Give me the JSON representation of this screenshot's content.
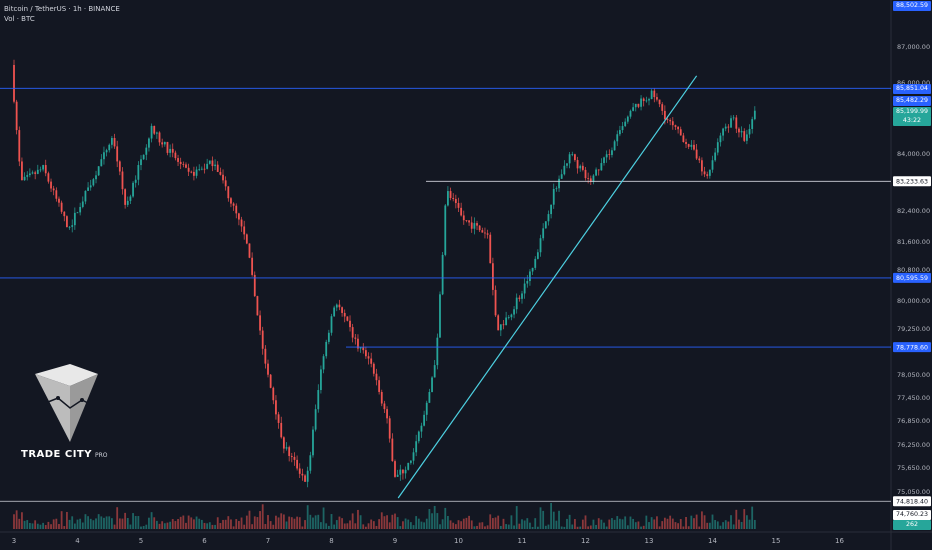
{
  "header": {
    "title": "Bitcoin / TetherUS · 1h · BINANCE",
    "volume_label": "Vol · BTC"
  },
  "logo": {
    "name": "TRADE CITY",
    "suffix": "PRO"
  },
  "colors": {
    "background": "#131722",
    "up": "#26a69a",
    "down": "#ef5350",
    "level_white": "#d1d4dc",
    "level_blue": "#2962ff",
    "trendline": "#4dd0e1"
  },
  "chart_data": {
    "type": "candlestick",
    "symbol": "BTCUSDT",
    "interval": "1h",
    "x_ticks": [
      "3",
      "4",
      "5",
      "6",
      "7",
      "8",
      "9",
      "10",
      "11",
      "12",
      "13",
      "14",
      "15",
      "16"
    ],
    "y_ticks": [
      "87,000.00",
      "86,000.00",
      "84,000.00",
      "82,400.00",
      "81,600.00",
      "80,800.00",
      "80,000.00",
      "79,250.00",
      "78,050.00",
      "77,450.00",
      "76,850.00",
      "76,250.00",
      "75,650.00",
      "75,050.00"
    ],
    "price_path": [
      {
        "day": 3.0,
        "price": 86500
      },
      {
        "day": 3.15,
        "price": 83200
      },
      {
        "day": 3.5,
        "price": 83600
      },
      {
        "day": 3.9,
        "price": 81900
      },
      {
        "day": 4.2,
        "price": 83000
      },
      {
        "day": 4.6,
        "price": 84500
      },
      {
        "day": 4.8,
        "price": 82500
      },
      {
        "day": 5.2,
        "price": 84700
      },
      {
        "day": 5.8,
        "price": 83400
      },
      {
        "day": 6.2,
        "price": 83800
      },
      {
        "day": 6.7,
        "price": 81600
      },
      {
        "day": 7.0,
        "price": 78300
      },
      {
        "day": 7.3,
        "price": 76200
      },
      {
        "day": 7.65,
        "price": 75300
      },
      {
        "day": 7.9,
        "price": 78500
      },
      {
        "day": 8.1,
        "price": 80000
      },
      {
        "day": 8.4,
        "price": 79000
      },
      {
        "day": 8.7,
        "price": 78200
      },
      {
        "day": 8.9,
        "price": 77000
      },
      {
        "day": 9.05,
        "price": 75400
      },
      {
        "day": 9.3,
        "price": 75800
      },
      {
        "day": 9.55,
        "price": 77300
      },
      {
        "day": 9.7,
        "price": 78700
      },
      {
        "day": 9.85,
        "price": 83000
      },
      {
        "day": 10.1,
        "price": 82200
      },
      {
        "day": 10.5,
        "price": 81800
      },
      {
        "day": 10.65,
        "price": 79200
      },
      {
        "day": 10.9,
        "price": 79800
      },
      {
        "day": 11.2,
        "price": 80800
      },
      {
        "day": 11.55,
        "price": 83000
      },
      {
        "day": 11.8,
        "price": 84000
      },
      {
        "day": 12.1,
        "price": 83200
      },
      {
        "day": 12.4,
        "price": 84000
      },
      {
        "day": 12.8,
        "price": 85300
      },
      {
        "day": 13.1,
        "price": 85700
      },
      {
        "day": 13.35,
        "price": 84900
      },
      {
        "day": 13.7,
        "price": 84200
      },
      {
        "day": 13.95,
        "price": 83300
      },
      {
        "day": 14.15,
        "price": 84500
      },
      {
        "day": 14.35,
        "price": 85000
      },
      {
        "day": 14.55,
        "price": 84400
      },
      {
        "day": 14.7,
        "price": 85200
      }
    ],
    "levels": [
      {
        "price": 85851.04,
        "label": "85,851.04",
        "style": "blue"
      },
      {
        "price": 83233.63,
        "label": "83,233.63",
        "style": "white"
      },
      {
        "price": 80595.59,
        "label": "80,595.59",
        "style": "blue"
      },
      {
        "price": 78778.6,
        "label": "78,778.60",
        "style": "blue"
      },
      {
        "price": 74818.4,
        "label": "74,818.40",
        "style": "white"
      }
    ],
    "trendline": {
      "from_day": 9.05,
      "from_price": 74900,
      "to_day": 13.75,
      "to_price": 86200
    },
    "price_tags": {
      "high": "88,502.59",
      "level_top": "85,851.04",
      "bid": "85,482.29",
      "last": "85,199.99",
      "countdown": "43:22",
      "low_bottom": "74,760.23",
      "volume": "262"
    }
  }
}
